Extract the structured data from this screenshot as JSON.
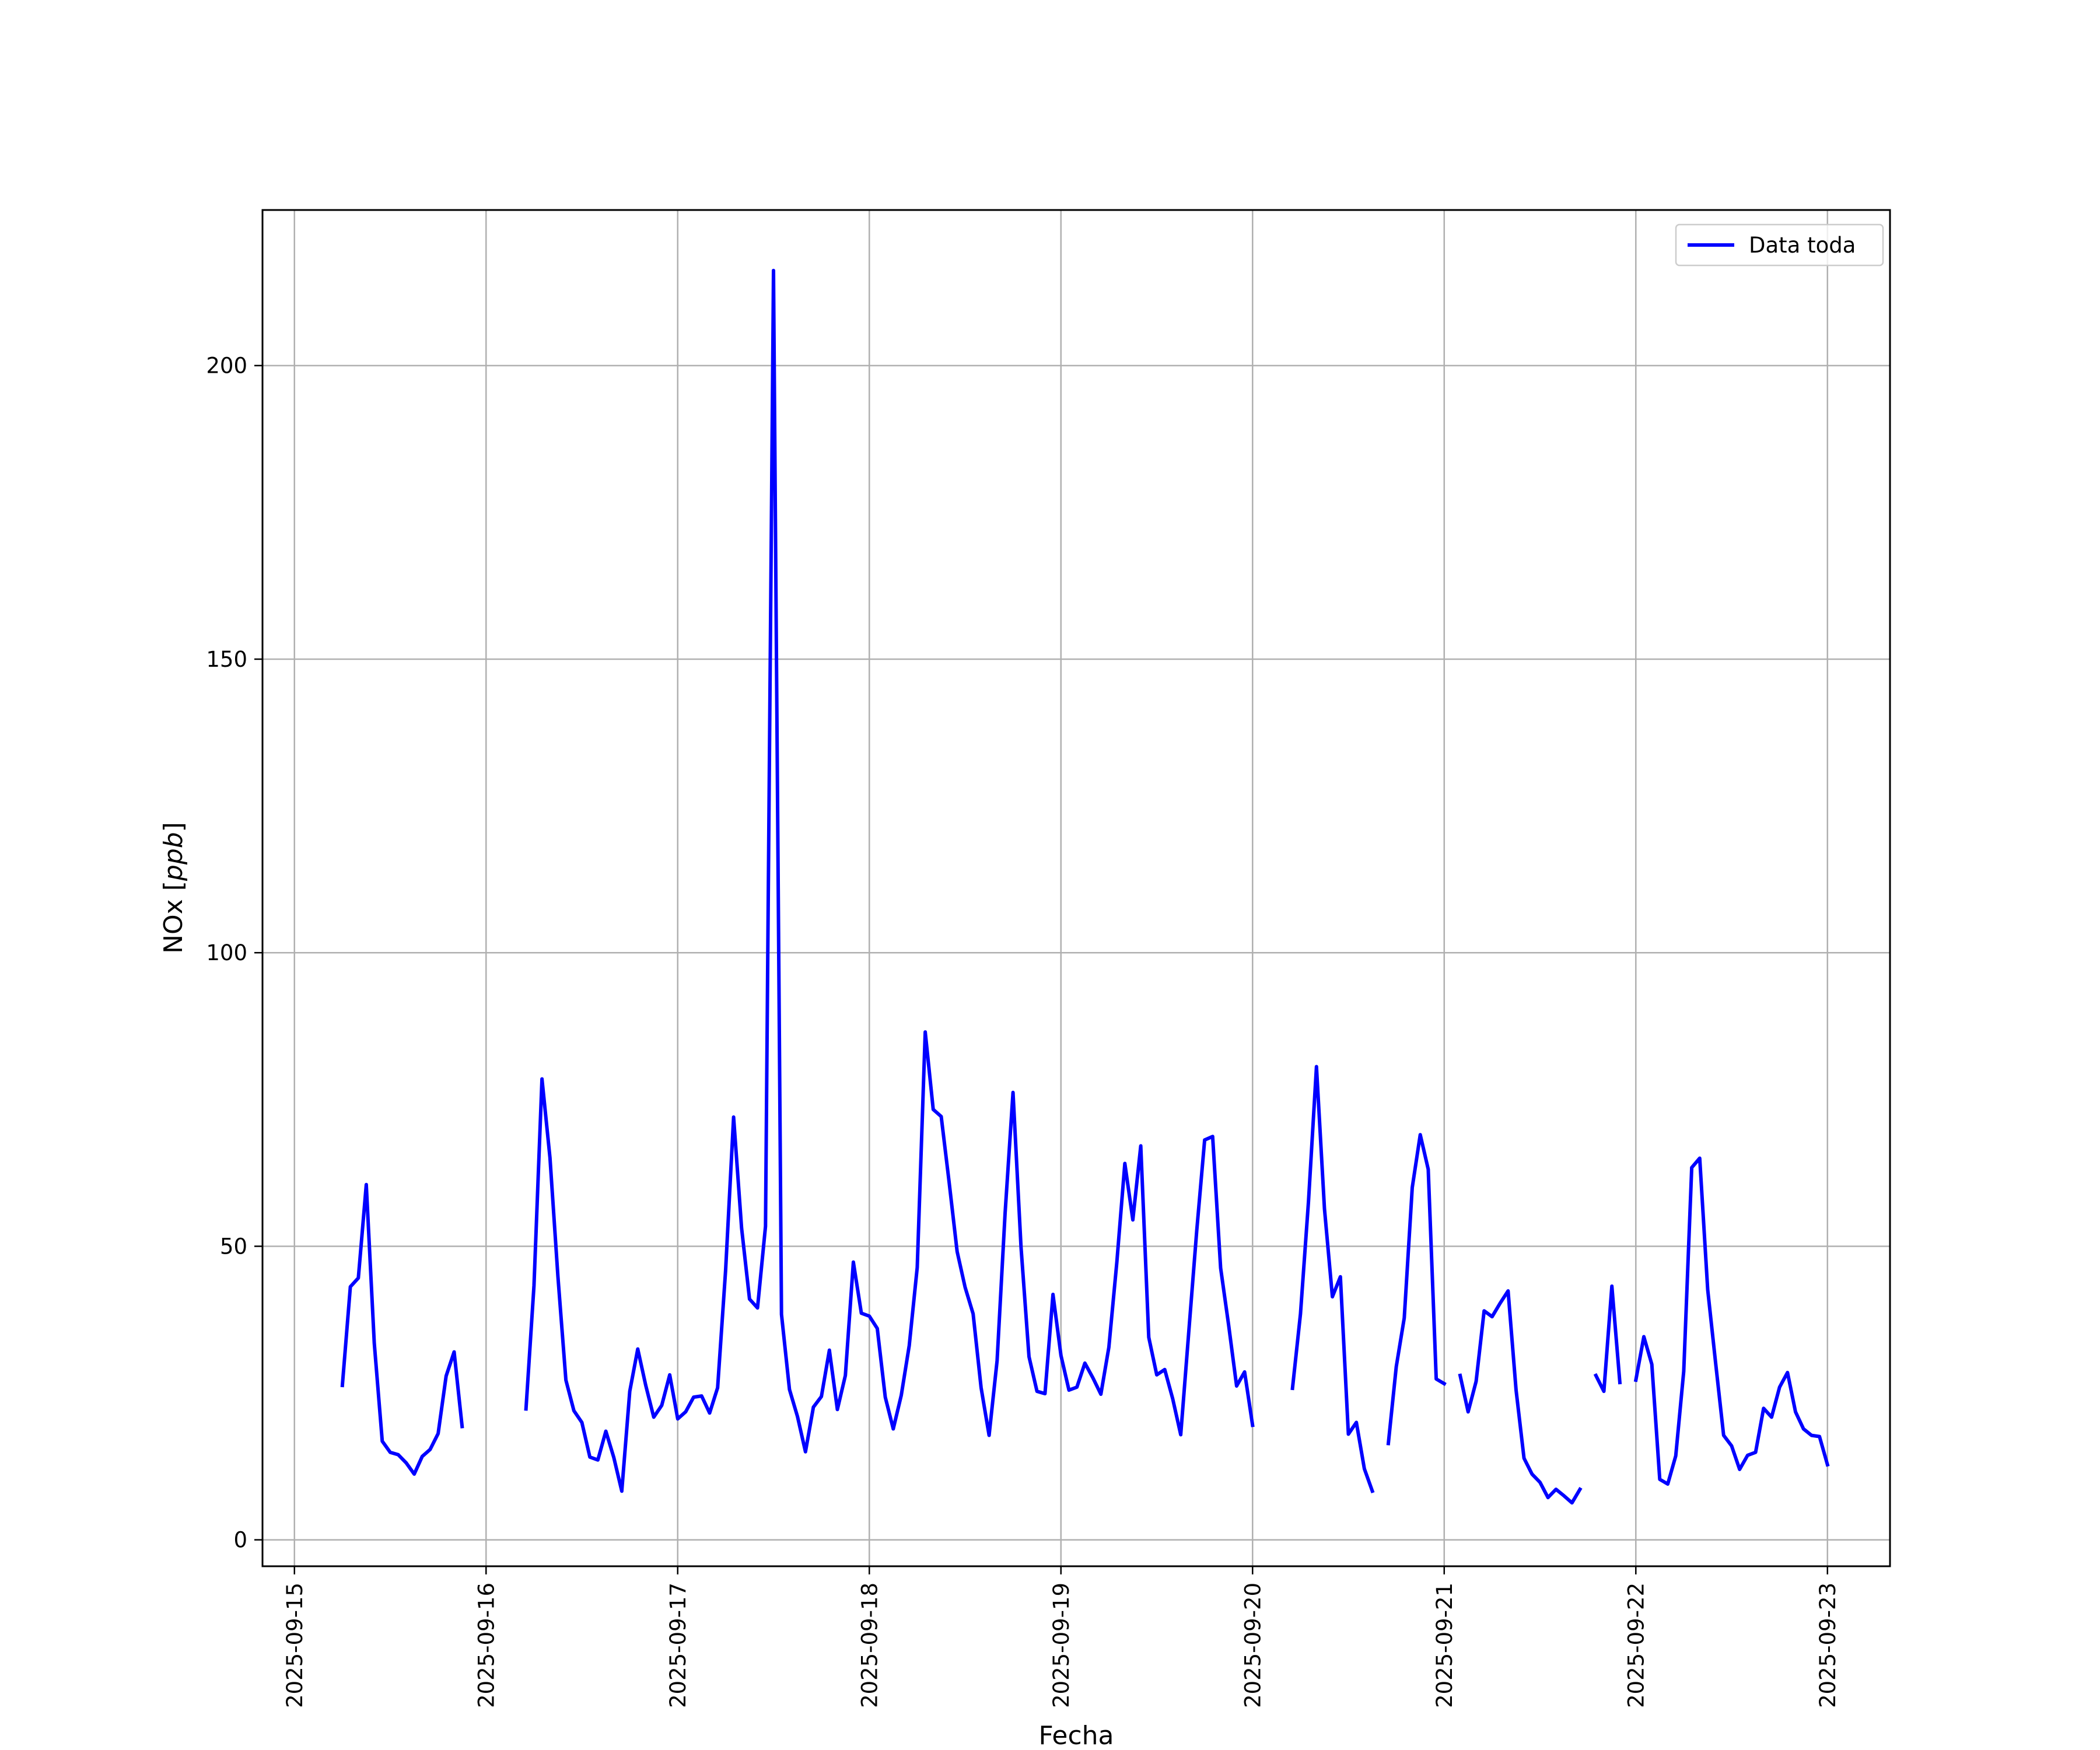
{
  "chart_data": {
    "type": "line",
    "xlabel": "Fecha",
    "ylabel": "NOx [ppb]",
    "ylabel_parts": {
      "name": "NOx",
      "unit": "ppb"
    },
    "x_ticks": [
      "2025-09-15",
      "2025-09-16",
      "2025-09-17",
      "2025-09-18",
      "2025-09-19",
      "2025-09-20",
      "2025-09-21",
      "2025-09-22",
      "2025-09-23"
    ],
    "y_ticks": [
      0,
      50,
      100,
      150,
      200
    ],
    "xlim": [
      "2025-09-14 20:00",
      "2025-09-23 07:50"
    ],
    "ylim": [
      -4.5,
      226.5
    ],
    "grid": true,
    "legend_position": "upper-right",
    "line_color": "#0000ff",
    "series": [
      {
        "name": "Data toda",
        "color": "#0000ff",
        "points": [
          [
            "2025-09-15 06:00",
            26.3
          ],
          [
            "2025-09-15 07:00",
            43.1
          ],
          [
            "2025-09-15 08:00",
            44.6
          ],
          [
            "2025-09-15 09:00",
            60.5
          ],
          [
            "2025-09-15 10:00",
            33.5
          ],
          [
            "2025-09-15 11:00",
            16.8
          ],
          [
            "2025-09-15 12:00",
            14.9
          ],
          [
            "2025-09-15 13:00",
            14.5
          ],
          [
            "2025-09-15 14:00",
            13.1
          ],
          [
            "2025-09-15 15:00",
            11.2
          ],
          [
            "2025-09-15 16:00",
            14.2
          ],
          [
            "2025-09-15 17:00",
            15.4
          ],
          [
            "2025-09-15 18:00",
            18.1
          ],
          [
            "2025-09-15 19:00",
            27.9
          ],
          [
            "2025-09-15 20:00",
            32.0
          ],
          [
            "2025-09-15 21:00",
            19.3
          ],
          [
            null,
            null
          ],
          [
            "2025-09-16 05:00",
            22.3
          ],
          [
            "2025-09-16 06:00",
            43.3
          ],
          [
            "2025-09-16 07:00",
            78.5
          ],
          [
            "2025-09-16 08:00",
            65.1
          ],
          [
            "2025-09-16 09:00",
            44.9
          ],
          [
            "2025-09-16 10:00",
            27.2
          ],
          [
            "2025-09-16 11:00",
            22.0
          ],
          [
            "2025-09-16 12:00",
            20.0
          ],
          [
            "2025-09-16 13:00",
            14.1
          ],
          [
            "2025-09-16 14:00",
            13.6
          ],
          [
            "2025-09-16 15:00",
            18.5
          ],
          [
            "2025-09-16 16:00",
            14.0
          ],
          [
            "2025-09-16 17:00",
            8.3
          ],
          [
            "2025-09-16 18:00",
            25.3
          ],
          [
            "2025-09-16 19:00",
            32.5
          ],
          [
            "2025-09-16 20:00",
            26.3
          ],
          [
            "2025-09-16 21:00",
            20.9
          ],
          [
            "2025-09-16 22:00",
            22.9
          ],
          [
            "2025-09-16 23:00",
            28.1
          ],
          [
            "2025-09-17 00:00",
            20.6
          ],
          [
            "2025-09-17 01:00",
            21.8
          ],
          [
            "2025-09-17 02:00",
            24.3
          ],
          [
            "2025-09-17 03:00",
            24.5
          ],
          [
            "2025-09-17 04:00",
            21.6
          ],
          [
            "2025-09-17 05:00",
            25.9
          ],
          [
            "2025-09-17 06:00",
            45.9
          ],
          [
            "2025-09-17 07:00",
            72.0
          ],
          [
            "2025-09-17 08:00",
            53.1
          ],
          [
            "2025-09-17 09:00",
            41.0
          ],
          [
            "2025-09-17 10:00",
            39.5
          ],
          [
            "2025-09-17 11:00",
            53.4
          ],
          [
            "2025-09-17 12:00",
            216.2
          ],
          [
            "2025-09-17 13:00",
            38.4
          ],
          [
            "2025-09-17 14:00",
            25.6
          ],
          [
            "2025-09-17 15:00",
            21.0
          ],
          [
            "2025-09-17 16:00",
            15.0
          ],
          [
            "2025-09-17 17:00",
            22.6
          ],
          [
            "2025-09-17 18:00",
            24.4
          ],
          [
            "2025-09-17 19:00",
            32.3
          ],
          [
            "2025-09-17 20:00",
            22.2
          ],
          [
            "2025-09-17 21:00",
            28.0
          ],
          [
            "2025-09-17 22:00",
            47.3
          ],
          [
            "2025-09-17 23:00",
            38.6
          ],
          [
            "2025-09-18 00:00",
            38.1
          ],
          [
            "2025-09-18 01:00",
            36.0
          ],
          [
            "2025-09-18 02:00",
            24.3
          ],
          [
            "2025-09-18 03:00",
            18.9
          ],
          [
            "2025-09-18 04:00",
            24.6
          ],
          [
            "2025-09-18 05:00",
            33.1
          ],
          [
            "2025-09-18 06:00",
            46.4
          ],
          [
            "2025-09-18 07:00",
            86.5
          ],
          [
            "2025-09-18 08:00",
            73.3
          ],
          [
            "2025-09-18 09:00",
            72.1
          ],
          [
            "2025-09-18 10:00",
            60.9
          ],
          [
            "2025-09-18 11:00",
            49.1
          ],
          [
            "2025-09-18 12:00",
            43.0
          ],
          [
            "2025-09-18 13:00",
            38.5
          ],
          [
            "2025-09-18 14:00",
            25.9
          ],
          [
            "2025-09-18 15:00",
            17.8
          ],
          [
            "2025-09-18 16:00",
            30.5
          ],
          [
            "2025-09-18 17:00",
            55.6
          ],
          [
            "2025-09-18 18:00",
            76.2
          ],
          [
            "2025-09-18 19:00",
            49.9
          ],
          [
            "2025-09-18 20:00",
            31.2
          ],
          [
            "2025-09-18 21:00",
            25.3
          ],
          [
            "2025-09-18 22:00",
            24.9
          ],
          [
            "2025-09-18 23:00",
            41.8
          ],
          [
            "2025-09-19 00:00",
            31.4
          ],
          [
            "2025-09-19 01:00",
            25.5
          ],
          [
            "2025-09-19 02:00",
            26.0
          ],
          [
            "2025-09-19 03:00",
            30.1
          ],
          [
            "2025-09-19 04:00",
            27.6
          ],
          [
            "2025-09-19 05:00",
            24.8
          ],
          [
            "2025-09-19 06:00",
            32.8
          ],
          [
            "2025-09-19 07:00",
            47.3
          ],
          [
            "2025-09-19 08:00",
            64.1
          ],
          [
            "2025-09-19 09:00",
            54.5
          ],
          [
            "2025-09-19 10:00",
            67.1
          ],
          [
            "2025-09-19 11:00",
            34.5
          ],
          [
            "2025-09-19 12:00",
            28.1
          ],
          [
            "2025-09-19 13:00",
            29.0
          ],
          [
            "2025-09-19 14:00",
            24.0
          ],
          [
            "2025-09-19 15:00",
            17.9
          ],
          [
            "2025-09-19 16:00",
            35.3
          ],
          [
            "2025-09-19 17:00",
            52.6
          ],
          [
            "2025-09-19 18:00",
            68.1
          ],
          [
            "2025-09-19 19:00",
            68.7
          ],
          [
            "2025-09-19 20:00",
            46.3
          ],
          [
            "2025-09-19 21:00",
            36.6
          ],
          [
            "2025-09-19 22:00",
            26.2
          ],
          [
            "2025-09-19 23:00",
            28.6
          ],
          [
            "2025-09-20 00:00",
            19.5
          ],
          [
            null,
            null
          ],
          [
            "2025-09-20 05:00",
            25.8
          ],
          [
            "2025-09-20 06:00",
            38.5
          ],
          [
            "2025-09-20 07:00",
            57.6
          ],
          [
            "2025-09-20 08:00",
            80.6
          ],
          [
            "2025-09-20 09:00",
            56.4
          ],
          [
            "2025-09-20 10:00",
            41.4
          ],
          [
            "2025-09-20 11:00",
            44.8
          ],
          [
            "2025-09-20 12:00",
            18.0
          ],
          [
            "2025-09-20 13:00",
            20.0
          ],
          [
            "2025-09-20 14:00",
            12.1
          ],
          [
            "2025-09-20 15:00",
            8.3
          ],
          [
            null,
            null
          ],
          [
            "2025-09-20 17:00",
            16.4
          ],
          [
            "2025-09-20 18:00",
            29.5
          ],
          [
            "2025-09-20 19:00",
            37.8
          ],
          [
            "2025-09-20 20:00",
            60.0
          ],
          [
            "2025-09-20 21:00",
            69.0
          ],
          [
            "2025-09-20 22:00",
            63.1
          ],
          [
            "2025-09-20 23:00",
            27.4
          ],
          [
            "2025-09-21 00:00",
            26.6
          ],
          [
            null,
            null
          ],
          [
            "2025-09-21 02:00",
            28.0
          ],
          [
            "2025-09-21 03:00",
            21.8
          ],
          [
            "2025-09-21 04:00",
            27.0
          ],
          [
            "2025-09-21 05:00",
            39.0
          ],
          [
            "2025-09-21 06:00",
            38.0
          ],
          [
            "2025-09-21 07:00",
            40.3
          ],
          [
            "2025-09-21 08:00",
            42.4
          ],
          [
            "2025-09-21 09:00",
            25.5
          ],
          [
            "2025-09-21 10:00",
            13.9
          ],
          [
            "2025-09-21 11:00",
            11.2
          ],
          [
            "2025-09-21 12:00",
            9.8
          ],
          [
            "2025-09-21 13:00",
            7.2
          ],
          [
            "2025-09-21 14:00",
            8.6
          ],
          [
            "2025-09-21 15:00",
            7.5
          ],
          [
            "2025-09-21 16:00",
            6.3
          ],
          [
            "2025-09-21 17:00",
            8.6
          ],
          [
            null,
            null
          ],
          [
            "2025-09-21 19:00",
            28.0
          ],
          [
            "2025-09-21 20:00",
            25.3
          ],
          [
            "2025-09-21 21:00",
            43.2
          ],
          [
            "2025-09-21 22:00",
            26.8
          ],
          [
            null,
            null
          ],
          [
            "2025-09-22 00:00",
            27.2
          ],
          [
            "2025-09-22 01:00",
            34.6
          ],
          [
            "2025-09-22 02:00",
            29.9
          ],
          [
            "2025-09-22 03:00",
            10.3
          ],
          [
            "2025-09-22 04:00",
            9.5
          ],
          [
            "2025-09-22 05:00",
            14.3
          ],
          [
            "2025-09-22 06:00",
            28.7
          ],
          [
            "2025-09-22 07:00",
            63.4
          ],
          [
            "2025-09-22 08:00",
            65.0
          ],
          [
            "2025-09-22 09:00",
            42.6
          ],
          [
            "2025-09-22 10:00",
            30.0
          ],
          [
            "2025-09-22 11:00",
            17.8
          ],
          [
            "2025-09-22 12:00",
            16.0
          ],
          [
            "2025-09-22 13:00",
            12.0
          ],
          [
            "2025-09-22 14:00",
            14.4
          ],
          [
            "2025-09-22 15:00",
            14.9
          ],
          [
            "2025-09-22 16:00",
            22.4
          ],
          [
            "2025-09-22 17:00",
            20.9
          ],
          [
            "2025-09-22 18:00",
            26.0
          ],
          [
            "2025-09-22 19:00",
            28.5
          ],
          [
            "2025-09-22 20:00",
            21.8
          ],
          [
            "2025-09-22 21:00",
            18.9
          ],
          [
            "2025-09-22 22:00",
            17.8
          ],
          [
            "2025-09-22 23:00",
            17.6
          ],
          [
            "2025-09-23 00:00",
            12.8
          ]
        ]
      }
    ]
  }
}
